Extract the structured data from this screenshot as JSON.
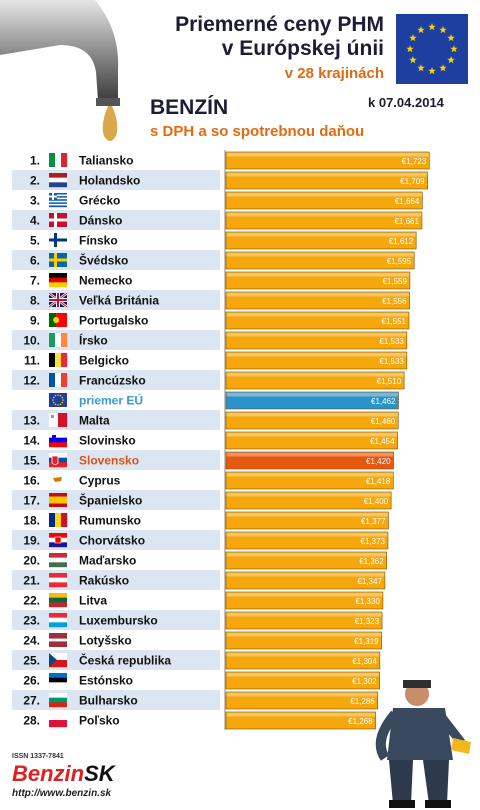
{
  "header": {
    "title_line1": "Priemerné ceny PHM",
    "title_line2": "v Európskej únii",
    "countries_line": "v 28 krajinách",
    "fuel": "BENZÍN",
    "subtitle": "s DPH a so spotrebnou daňou",
    "date": "k 07.04.2014"
  },
  "colors": {
    "bar": "#f5a70c",
    "bar_eu": "#2b93c9",
    "bar_sk": "#e6580f",
    "row_alt": "#dbe6f2",
    "label_eu": "#3a9bd0",
    "label_sk": "#d9541a"
  },
  "chart_data": {
    "type": "bar",
    "orientation": "horizontal",
    "currency": "€",
    "rows": [
      {
        "rank": "1.",
        "country": "Taliansko",
        "flag": "italy-flag",
        "value": 1.723,
        "label": "€1,723"
      },
      {
        "rank": "2.",
        "country": "Holandsko",
        "flag": "netherlands-flag",
        "value": 1.709,
        "label": "€1,709"
      },
      {
        "rank": "3.",
        "country": "Grécko",
        "flag": "greece-flag",
        "value": 1.664,
        "label": "€1,664"
      },
      {
        "rank": "4.",
        "country": "Dánsko",
        "flag": "denmark-flag",
        "value": 1.661,
        "label": "€1,661"
      },
      {
        "rank": "5.",
        "country": "Fínsko",
        "flag": "finland-flag",
        "value": 1.612,
        "label": "€1,612"
      },
      {
        "rank": "6.",
        "country": "Švédsko",
        "flag": "sweden-flag",
        "value": 1.595,
        "label": "€1,595"
      },
      {
        "rank": "7.",
        "country": "Nemecko",
        "flag": "germany-flag",
        "value": 1.559,
        "label": "€1,559"
      },
      {
        "rank": "8.",
        "country": "Veľká Británia",
        "flag": "uk-flag",
        "value": 1.556,
        "label": "€1,556"
      },
      {
        "rank": "9.",
        "country": "Portugalsko",
        "flag": "portugal-flag",
        "value": 1.551,
        "label": "€1,551"
      },
      {
        "rank": "10.",
        "country": "Írsko",
        "flag": "ireland-flag",
        "value": 1.533,
        "label": "€1,533"
      },
      {
        "rank": "11.",
        "country": "Belgicko",
        "flag": "belgium-flag",
        "value": 1.533,
        "label": "€1,533"
      },
      {
        "rank": "12.",
        "country": "Francúzsko",
        "flag": "france-flag",
        "value": 1.51,
        "label": "€1,510"
      },
      {
        "rank": "",
        "country": "priemer EÚ",
        "flag": "eu-flag",
        "value": 1.462,
        "label": "€1,462",
        "highlight": "eu"
      },
      {
        "rank": "13.",
        "country": "Malta",
        "flag": "malta-flag",
        "value": 1.46,
        "label": "€1,460"
      },
      {
        "rank": "14.",
        "country": "Slovinsko",
        "flag": "slovenia-flag",
        "value": 1.454,
        "label": "€1,454"
      },
      {
        "rank": "15.",
        "country": "Slovensko",
        "flag": "slovakia-flag",
        "value": 1.42,
        "label": "€1,420",
        "highlight": "sk"
      },
      {
        "rank": "16.",
        "country": "Cyprus",
        "flag": "cyprus-flag",
        "value": 1.418,
        "label": "€1,418"
      },
      {
        "rank": "17.",
        "country": "Španielsko",
        "flag": "spain-flag",
        "value": 1.4,
        "label": "€1,400"
      },
      {
        "rank": "18.",
        "country": "Rumunsko",
        "flag": "romania-flag",
        "value": 1.377,
        "label": "€1,377"
      },
      {
        "rank": "19.",
        "country": "Chorvátsko",
        "flag": "croatia-flag",
        "value": 1.373,
        "label": "€1,373"
      },
      {
        "rank": "20.",
        "country": "Maďarsko",
        "flag": "hungary-flag",
        "value": 1.362,
        "label": "€1,362"
      },
      {
        "rank": "21.",
        "country": "Rakúsko",
        "flag": "austria-flag",
        "value": 1.347,
        "label": "€1,347"
      },
      {
        "rank": "22.",
        "country": "Litva",
        "flag": "lithuania-flag",
        "value": 1.33,
        "label": "€1,330"
      },
      {
        "rank": "23.",
        "country": "Luxembursko",
        "flag": "luxembourg-flag",
        "value": 1.323,
        "label": "€1,323"
      },
      {
        "rank": "24.",
        "country": "Lotyšsko",
        "flag": "latvia-flag",
        "value": 1.319,
        "label": "€1,319"
      },
      {
        "rank": "25.",
        "country": "Česká republika",
        "flag": "czech-flag",
        "value": 1.304,
        "label": "€1,304"
      },
      {
        "rank": "26.",
        "country": "Estónsko",
        "flag": "estonia-flag",
        "value": 1.302,
        "label": "€1,302"
      },
      {
        "rank": "27.",
        "country": "Bulharsko",
        "flag": "bulgaria-flag",
        "value": 1.286,
        "label": "€1,286"
      },
      {
        "rank": "28.",
        "country": "Poľsko",
        "flag": "poland-flag",
        "value": 1.268,
        "label": "€1,268"
      }
    ]
  },
  "footer": {
    "issn": "ISSN 1337-7841",
    "logo_part1": "Benzin",
    "logo_part2": "SK",
    "website": "http://www.benzin.sk"
  }
}
